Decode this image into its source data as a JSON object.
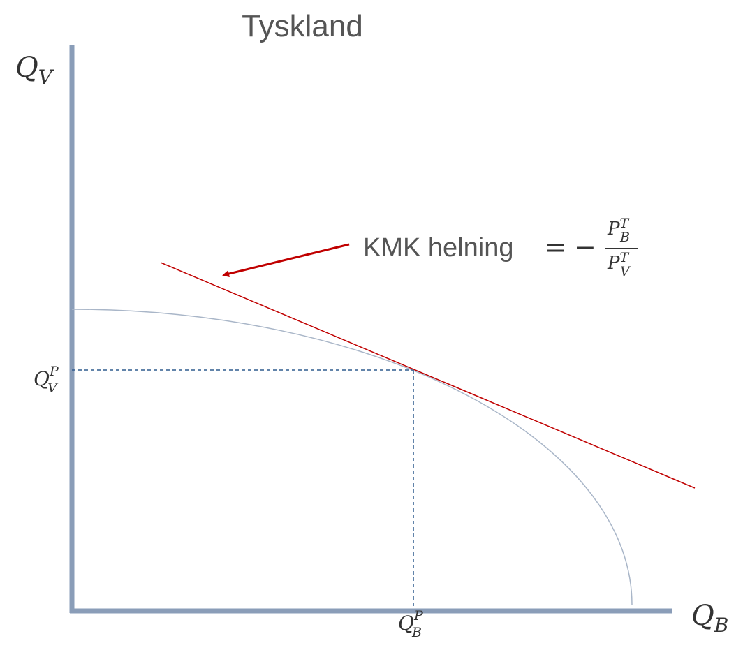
{
  "title": "Tyskland",
  "y_axis_label": {
    "base": "Q",
    "sub": "V"
  },
  "x_axis_label": {
    "base": "Q",
    "sub": "B"
  },
  "y_point_label": {
    "base": "Q",
    "sup": "P",
    "sub": "V"
  },
  "x_point_label": {
    "base": "Q",
    "sup": "P",
    "sub": "B"
  },
  "annotation": {
    "text": "KMK helning",
    "equals": "=",
    "minus": "−",
    "numerator": {
      "base": "P",
      "sup": "T",
      "sub": "B"
    },
    "denominator": {
      "base": "P",
      "sup": "T",
      "sub": "V"
    }
  }
}
